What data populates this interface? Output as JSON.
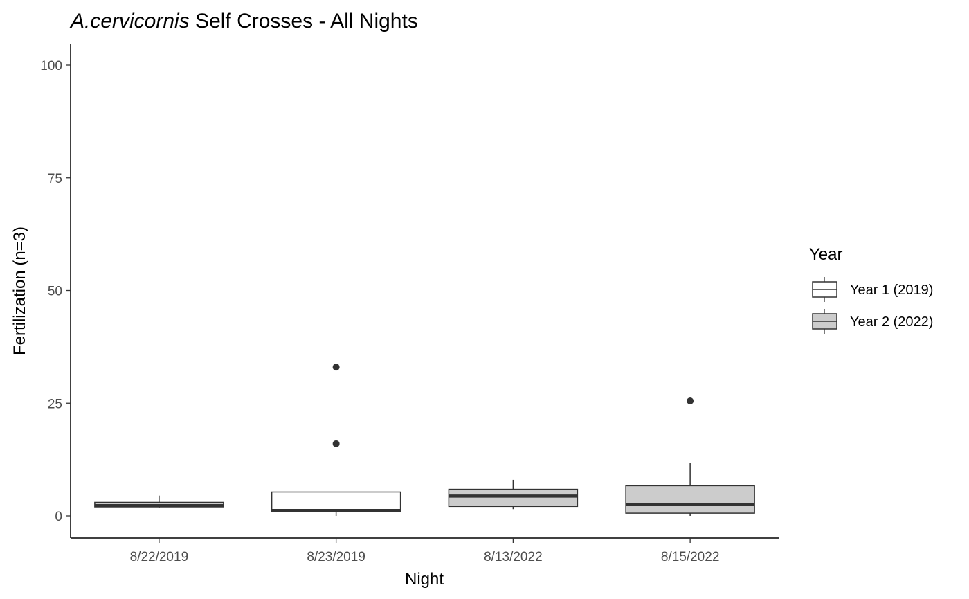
{
  "chart_data": {
    "type": "box",
    "title_italic": "A.cervicornis",
    "title_rest": " Self Crosses - All Nights",
    "xlabel": "Night",
    "ylabel": "Fertilization (n=3)",
    "ylim": [
      -4.8,
      104.5
    ],
    "yticks": [
      0,
      25,
      50,
      75,
      100
    ],
    "categories": [
      "8/22/2019",
      "8/23/2019",
      "8/13/2022",
      "8/15/2022"
    ],
    "legend": {
      "title": "Year",
      "placement": "right",
      "items": [
        {
          "label": "Year 1 (2019)",
          "fill": "#ffffff"
        },
        {
          "label": "Year 2 (2022)",
          "fill": "#cccccc"
        }
      ]
    },
    "boxes": [
      {
        "category": "8/22/2019",
        "group": "Year 1 (2019)",
        "fill": "#ffffff",
        "min": 1.8,
        "q1": 2.0,
        "median": 2.3,
        "q3": 3.0,
        "max": 4.5,
        "outliers": []
      },
      {
        "category": "8/23/2019",
        "group": "Year 1 (2019)",
        "fill": "#ffffff",
        "min": 0.0,
        "q1": 1.0,
        "median": 1.2,
        "q3": 5.3,
        "max": 5.3,
        "outliers": [
          33.0,
          16.0
        ]
      },
      {
        "category": "8/13/2022",
        "group": "Year 2 (2022)",
        "fill": "#cccccc",
        "min": 1.5,
        "q1": 2.1,
        "median": 4.4,
        "q3": 5.9,
        "max": 8.0,
        "outliers": []
      },
      {
        "category": "8/15/2022",
        "group": "Year 2 (2022)",
        "fill": "#cccccc",
        "min": 0.0,
        "q1": 0.6,
        "median": 2.5,
        "q3": 6.7,
        "max": 11.8,
        "outliers": [
          25.5
        ]
      }
    ]
  }
}
